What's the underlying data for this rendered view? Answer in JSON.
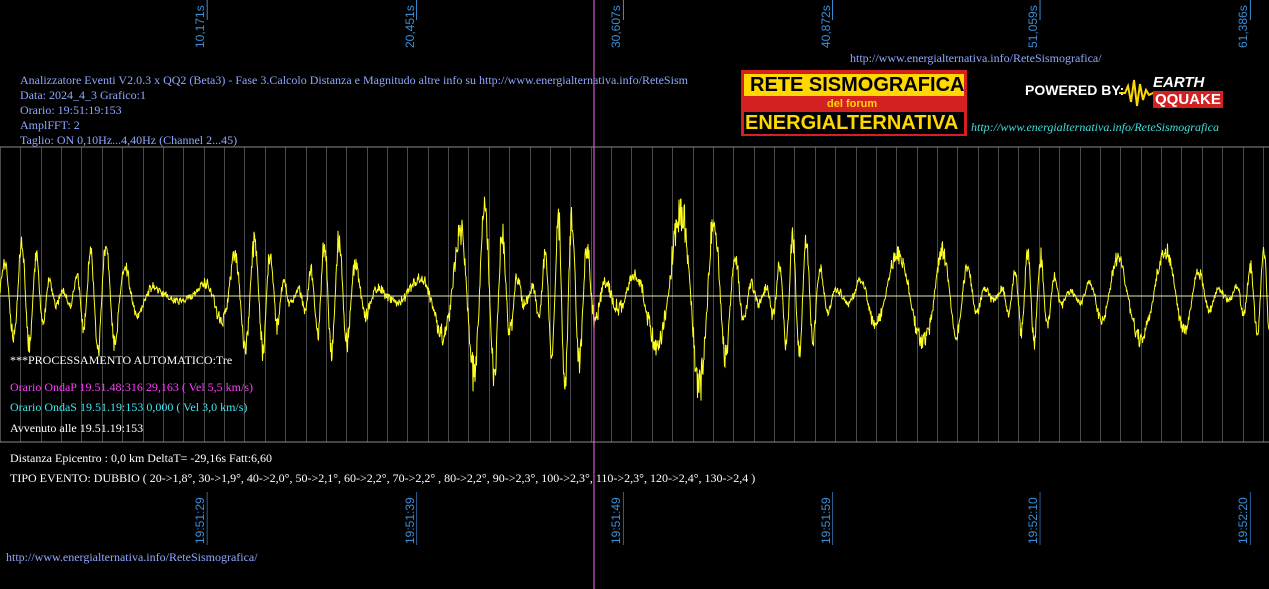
{
  "colors": {
    "background": "#000000",
    "signal": "#ffff20",
    "grid": "#8a8a8a",
    "baseline": "#e8e8b0",
    "marker": "#ff60ff",
    "tick_text": "#3a8fd8"
  },
  "chart_data": {
    "type": "line",
    "title": "",
    "xlabel": "",
    "ylabel": "",
    "top_ticks": [
      "10,171s",
      "20,451s",
      "30,607s",
      "40,872s",
      "51,059s",
      "61,386s"
    ],
    "bottom_ticks": [
      "19:51:29",
      "19:51:39",
      "19:51:49",
      "19:51:59",
      "19:52:10",
      "19:52:20"
    ],
    "x_range_s": [
      0,
      62.3
    ],
    "y_range": [
      -1,
      1
    ],
    "marker_time_s": 29.16,
    "series": [
      {
        "envelope_s": [
          0,
          10,
          20,
          22,
          24,
          26,
          28,
          30,
          31,
          32,
          33,
          33.5,
          34,
          35,
          36,
          38,
          40,
          45,
          50,
          55,
          62.3
        ],
        "envelope_amp": [
          0.45,
          0.5,
          0.55,
          0.75,
          0.8,
          0.7,
          0.8,
          0.9,
          0.75,
          0.85,
          1.0,
          1.0,
          0.95,
          0.7,
          0.55,
          0.55,
          0.55,
          0.45,
          0.4,
          0.4,
          0.4
        ]
      }
    ]
  },
  "header": {
    "url_top": "http://www.energialternativa.info/ReteSismografica/",
    "line1": "Analizzatore Eventi V2.0.3 x QQ2 (Beta3) - Fase 3.Calcolo Distanza e Magnitudo altre info su http://www.energialternativa.info/ReteSism",
    "line2": "Data: 2024_4_3 Grafico:1",
    "line3": "Orario: 19:51:19:153",
    "line4": "AmplFFT: 2",
    "line5": "Taglio: ON 0,10Hz...4,40Hz       (Channel 2...45)"
  },
  "processing": {
    "title": "***PROCESSAMENTO AUTOMATICO:Tre",
    "onda_p": "Orario OndaP 19.51.48:316  29,163 ( Vel 5,5 km/s)",
    "onda_s": "Orario OndaS 19.51.19:153  0,000 ( Vel 3,0 km/s)",
    "avvenuto": "Avvenuto alle 19.51.19:153",
    "distanza": "Distanza Epicentro : 0,0 km DeltaT= -29,16s  Fatt:6,60",
    "tipo": "TIPO EVENTO: DUBBIO ( 20->1,8°, 30->1,9°, 40->2,0°, 50->2,1°, 60->2,2°, 70->2,2° , 80->2,2°, 90->2,3°, 100->2,3°, 110->2,3°, 120->2,4°, 130->2,4 )"
  },
  "logo": {
    "rete": "RETE SISMOGRAFICA",
    "delforum": "del forum",
    "energ": "ENERGIALTERNATIVA",
    "powered": "POWERED BY:",
    "earth": "EARTH",
    "qq": "QQUAKE",
    "url": "http://www.energialternativa.info/ReteSismografica"
  },
  "footer": {
    "url": "http://www.energialternativa.info/ReteSismografica/"
  }
}
